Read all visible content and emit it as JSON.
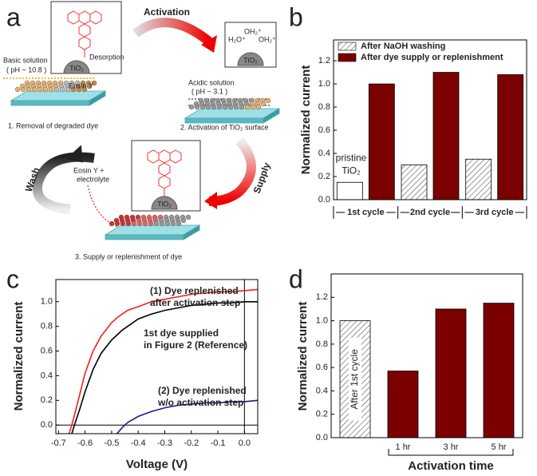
{
  "panel_labels": [
    "a",
    "b",
    "c",
    "d"
  ],
  "diagram": {
    "activation": "Activation",
    "desorption": "Desorption",
    "basic_solution": "Basic solution",
    "basic_ph": "( pH ~ 10.8 )",
    "eosin": "Eosin Y",
    "step1": "1. Removal of degraded dye",
    "acidic_solution": "Acidic solution",
    "acidic_ph": "( pH ~ 3.1 )",
    "step2": "2. Activation of TiO₂ surface",
    "surface_groups": [
      "H₂O⁺",
      "OH₂⁺",
      "OH₂⁺"
    ],
    "wash": "Wash",
    "supply": "Supply",
    "eosin_electrolyte": [
      "Eosin Y +",
      "electrolyte"
    ],
    "step3": "3. Supply or replenishment of dye",
    "tio2": "TiO₂"
  },
  "chart_data": [
    {
      "type": "bar",
      "ylabel": "Normalized current",
      "categories": [
        "1st cycle",
        "2nd cycle",
        "3rd cycle"
      ],
      "series": [
        {
          "name": "After NaOH washing",
          "color": "#ffffff",
          "patterns": [
            "none",
            "hatch",
            "hatch"
          ],
          "values": [
            0.15,
            0.3,
            0.35
          ]
        },
        {
          "name": "After dye supply or replenishment",
          "color": "#7b0000",
          "values": [
            1.0,
            1.1,
            1.08
          ]
        }
      ],
      "annotations": [
        "pristine",
        "TiO₂"
      ],
      "ylim": [
        0,
        1.38
      ],
      "yticks": [
        {
          "value": 0,
          "label": "0.0"
        },
        {
          "value": 0.2,
          "label": "0.2"
        },
        {
          "value": 0.4,
          "label": "0.4"
        },
        {
          "value": 0.6,
          "label": "0.6"
        },
        {
          "value": 0.8,
          "label": "0.8"
        },
        {
          "value": 1.0,
          "label": "1.0"
        },
        {
          "value": 1.2,
          "label": "1.2"
        }
      ],
      "legend": "upper left"
    },
    {
      "type": "line",
      "xlabel": "Voltage (V)",
      "ylabel": "Normalized current",
      "x": [
        -0.66,
        -0.65,
        -0.64,
        -0.62,
        -0.6,
        -0.57,
        -0.54,
        -0.5,
        -0.48,
        -0.46,
        -0.44,
        -0.4,
        -0.35,
        -0.3,
        -0.25,
        -0.2,
        -0.15,
        -0.1,
        -0.05,
        0,
        0.05
      ],
      "series": [
        {
          "name": "(1) Dye replenished after activation step",
          "label_lines": [
            "(1) Dye replenished",
            "after activation step"
          ],
          "color": "#ff1a1a",
          "values": [
            -0.07,
            0.0,
            0.08,
            0.25,
            0.42,
            0.6,
            0.72,
            0.83,
            0.87,
            0.9,
            0.93,
            0.96,
            1.0,
            1.02,
            1.04,
            1.06,
            1.07,
            1.08,
            1.08,
            1.09,
            1.1
          ]
        },
        {
          "name": "1st dye supplied in Figure 2 (Reference)",
          "label_lines": [
            "1st dye supplied",
            "in Figure 2 (Reference)"
          ],
          "color": "#000000",
          "values": [
            null,
            -0.07,
            0.0,
            0.13,
            0.27,
            0.45,
            0.58,
            0.69,
            0.73,
            0.77,
            0.8,
            0.86,
            0.9,
            0.93,
            0.95,
            0.97,
            0.98,
            0.99,
            0.99,
            1.0,
            1.0
          ]
        },
        {
          "name": "(2) Dye replenished w/o activation step",
          "label_lines": [
            "(2) Dye replenished",
            "w/o activation step"
          ],
          "color": "#1a1a8c",
          "values": [
            null,
            null,
            null,
            null,
            null,
            null,
            null,
            null,
            -0.07,
            -0.02,
            0.02,
            0.07,
            0.11,
            0.14,
            0.16,
            0.17,
            0.18,
            0.18,
            0.19,
            0.19,
            0.2
          ]
        }
      ],
      "xlim": [
        -0.71,
        0.05
      ],
      "ylim": [
        -0.07,
        1.18
      ],
      "xticks": [
        -0.7,
        -0.6,
        -0.5,
        -0.4,
        -0.3,
        -0.2,
        -0.1,
        {
          "value": 0,
          "label": "0.0"
        }
      ],
      "yticks": [
        {
          "value": 0,
          "label": "0.0"
        },
        {
          "value": 0.2,
          "label": "0.2"
        },
        {
          "value": 0.4,
          "label": "0.4"
        },
        {
          "value": 0.6,
          "label": "0.6"
        },
        {
          "value": 0.8,
          "label": "0.8"
        },
        {
          "value": 1.0,
          "label": "1.0"
        }
      ],
      "hlines": [
        0
      ],
      "vlines": [
        0
      ]
    },
    {
      "type": "bar",
      "ylabel": "Normalized current",
      "xlabel": "Activation time",
      "categories": [
        "After 1st cycle",
        "1 hr",
        "3 hr",
        "5 hr"
      ],
      "values": [
        1.0,
        0.57,
        1.1,
        1.15
      ],
      "color": "#7b0000",
      "patterns": [
        "hatch",
        "none",
        "none",
        "none"
      ],
      "ylim": [
        0,
        1.4
      ],
      "yticks": [
        {
          "value": 0,
          "label": "0.0"
        },
        {
          "value": 0.2,
          "label": "0.2"
        },
        {
          "value": 0.4,
          "label": "0.4"
        },
        {
          "value": 0.6,
          "label": "0.6"
        },
        {
          "value": 0.8,
          "label": "0.8"
        },
        {
          "value": 1.0,
          "label": "1.0"
        },
        {
          "value": 1.2,
          "label": "1.2"
        }
      ]
    }
  ]
}
